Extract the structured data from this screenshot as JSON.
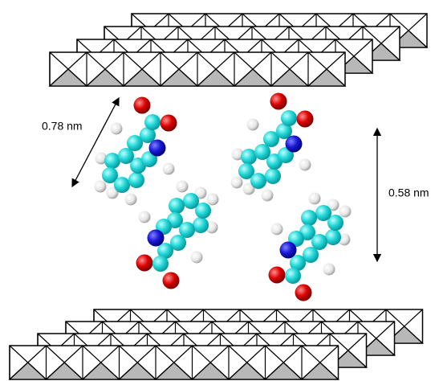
{
  "annotations": {
    "diagonal_distance": "0.78 nm",
    "vertical_distance": "0.58 nm"
  }
}
